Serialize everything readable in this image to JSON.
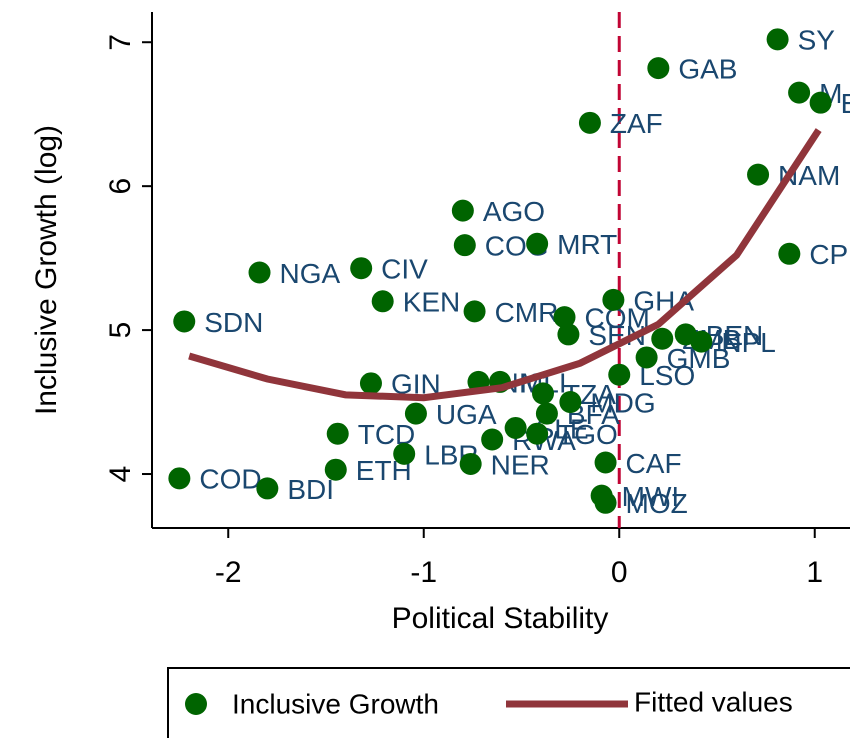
{
  "chart_data": {
    "type": "scatter",
    "xlabel": "Political Stability",
    "ylabel": "Inclusive Growth (log)",
    "xlim": [
      -2.39,
      1.3
    ],
    "ylim": [
      3.625,
      7.21
    ],
    "xticks": [
      -2,
      -1,
      0,
      1
    ],
    "yticks": [
      4,
      5,
      6,
      7
    ],
    "xline": 0,
    "xline_color": "#c10534",
    "series": [
      {
        "name": "Inclusive Growth",
        "type": "scatter",
        "color": "#006400",
        "label_color": "#1a476f",
        "x": [
          -2.225,
          -2.25,
          -1.8,
          -1.84,
          -1.32,
          -1.21,
          -1.45,
          -1.44,
          -1.27,
          -1.04,
          -1.1,
          -0.8,
          -0.79,
          -0.74,
          -0.76,
          -0.72,
          -0.61,
          -0.65,
          -0.53,
          -0.42,
          -0.39,
          -0.37,
          -0.25,
          -0.42,
          -0.28,
          -0.26,
          -0.15,
          -0.03,
          0.0,
          -0.07,
          -0.09,
          -0.07,
          0.2,
          0.14,
          0.22,
          0.34,
          0.42,
          0.71,
          0.81,
          0.92,
          1.03,
          0.87
        ],
        "values": [
          5.06,
          3.97,
          3.9,
          5.4,
          5.43,
          5.2,
          4.03,
          4.28,
          4.63,
          4.42,
          4.14,
          5.83,
          5.59,
          5.13,
          4.07,
          4.64,
          4.64,
          4.24,
          4.32,
          4.28,
          4.56,
          4.42,
          4.5,
          5.6,
          5.09,
          4.97,
          6.44,
          5.21,
          4.69,
          4.08,
          3.85,
          3.8,
          6.82,
          4.81,
          4.94,
          4.97,
          4.92,
          6.08,
          7.02,
          6.65,
          6.58,
          5.53
        ],
        "labels": [
          "SDN",
          "COD",
          "BDI",
          "NGA",
          "CIV",
          "KEN",
          "ETH",
          "TCD",
          "GIN",
          "UGA",
          "LBR",
          "AGO",
          "COG",
          "CMR",
          "NER",
          "NIC",
          "MLI",
          "RWA",
          "SLE",
          "TGO",
          "TZA",
          "BFA",
          "MDG",
          "MRT",
          "COM",
          "SEN",
          "ZAF",
          "GHA",
          "LSO",
          "CAF",
          "MWI",
          "MOZ",
          "GAB",
          "GMB",
          "ZMB",
          "BEN",
          "NPL",
          "NAM",
          "SY",
          "M",
          "E",
          "CP"
        ]
      },
      {
        "name": "Fitted values",
        "type": "line",
        "color": "#90353b",
        "x": [
          -2.2,
          -1.8,
          -1.4,
          -1.0,
          -0.6,
          -0.2,
          0.2,
          0.6,
          1.02
        ],
        "values": [
          4.82,
          4.66,
          4.55,
          4.53,
          4.6,
          4.77,
          5.04,
          5.52,
          6.39
        ]
      }
    ]
  }
}
